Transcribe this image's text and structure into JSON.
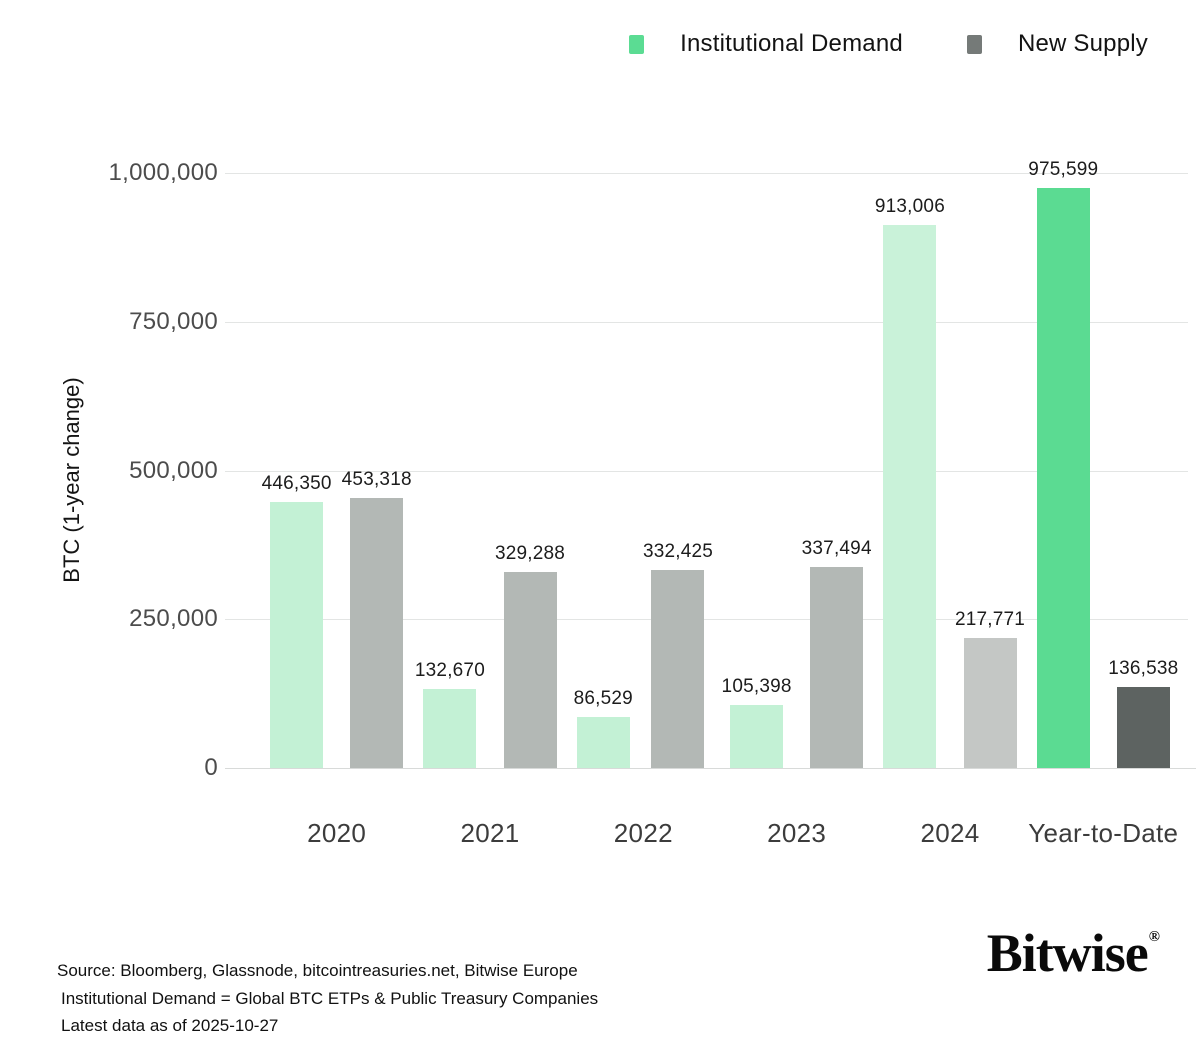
{
  "legend": {
    "items": [
      {
        "label": "Institutional Demand",
        "color": "#5bdc93"
      },
      {
        "label": "New Supply",
        "color": "#757a78"
      }
    ]
  },
  "chart_data": {
    "type": "bar",
    "title": "",
    "xlabel": "",
    "ylabel": "BTC (1-year change)",
    "ylim": [
      0,
      1000000
    ],
    "grid": true,
    "legend_position": "top-right",
    "yticks": [
      {
        "value": 1000000,
        "label": "1,000,000"
      },
      {
        "value": 750000,
        "label": "750,000"
      },
      {
        "value": 500000,
        "label": "500,000"
      },
      {
        "value": 250000,
        "label": "250,000"
      },
      {
        "value": 0,
        "label": "0"
      }
    ],
    "categories": [
      "2020",
      "2021",
      "2022",
      "2023",
      "2024",
      "Year-to-Date"
    ],
    "series": [
      {
        "name": "Institutional Demand",
        "values": [
          446350,
          132670,
          86529,
          105398,
          913006,
          975599
        ],
        "labels": [
          "446,350",
          "132,670",
          "86,529",
          "105,398",
          "913,006",
          "975,599"
        ],
        "colors": [
          "#c3f1d5",
          "#c3f1d5",
          "#c3f1d5",
          "#c3f1d5",
          "#c9f2d9",
          "#5bdb92"
        ]
      },
      {
        "name": "New Supply",
        "values": [
          453318,
          329288,
          332425,
          337494,
          217771,
          136538
        ],
        "labels": [
          "453,318",
          "329,288",
          "332,425",
          "337,494",
          "217,771",
          "136,538"
        ],
        "colors": [
          "#b3b8b5",
          "#b3b8b5",
          "#b3b8b5",
          "#b3b8b5",
          "#c4c7c5",
          "#5d6361"
        ]
      }
    ]
  },
  "footer": {
    "lines": [
      "Source: Bloomberg, Glassnode, bitcointreasuries.net, Bitwise Europe",
      "Institutional Demand = Global BTC ETPs & Public Treasury Companies",
      "Latest data as of 2025-10-27"
    ]
  },
  "brand": {
    "wordmark": "Bitwise",
    "registered": "®"
  }
}
